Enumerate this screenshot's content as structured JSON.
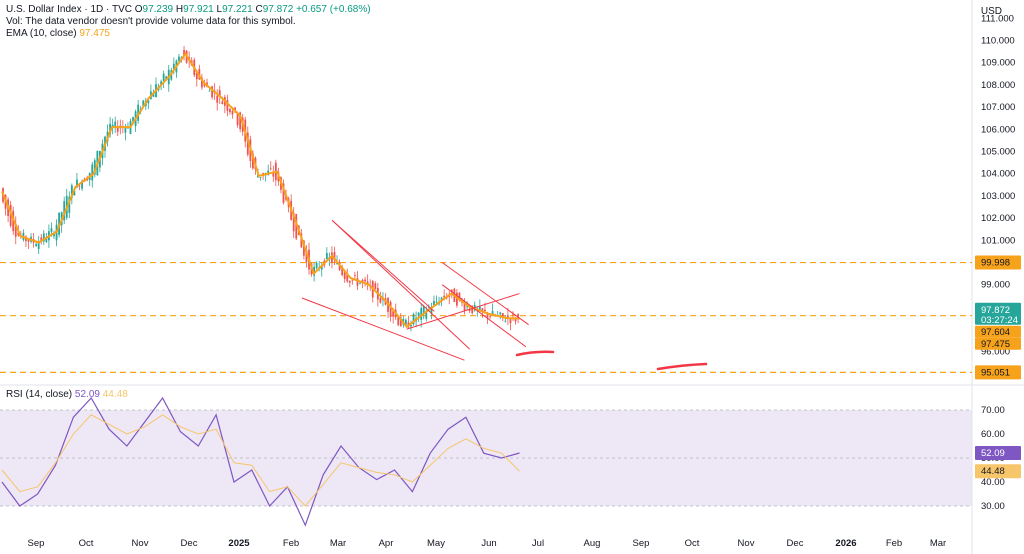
{
  "header": {
    "symbol_line": "U.S. Dollar Index · 1D · TVC",
    "o_label": "O",
    "o_value": "97.239",
    "h_label": "H",
    "h_value": "97.921",
    "l_label": "L",
    "l_value": "97.221",
    "c_label": "C",
    "c_value": "97.872",
    "change": "+0.657 (+0.68%)",
    "vol_note": "Vol: The data vendor doesn't provide volume data for this symbol.",
    "ema_label": "EMA (10, close)",
    "ema_value": "97.475",
    "currency": "USD"
  },
  "rsi_header": {
    "label": "RSI (14, close)",
    "value": "52.09",
    "ma_value": "44.48"
  },
  "colors": {
    "up": "#26a69a",
    "down": "#ef5350",
    "ema": "#f7a21b",
    "rsi": "#7e57c2",
    "rsi_ma": "#f7c66b",
    "rsi_band": "#ede7f6",
    "trendline": "#f23645",
    "dashed": "#f7a21b"
  },
  "chart_data": [
    {
      "type": "line",
      "title": "U.S. Dollar Index · 1D · TVC",
      "x_tick_labels": [
        "Sep",
        "Oct",
        "Nov",
        "Dec",
        "2025",
        "Feb",
        "Mar",
        "Apr",
        "May",
        "Jun",
        "Jul",
        "Aug",
        "Sep",
        "Oct",
        "Nov",
        "Dec",
        "2026",
        "Feb",
        "Mar"
      ],
      "y_tick_labels": [
        "111.000",
        "110.000",
        "109.000",
        "108.000",
        "107.000",
        "106.000",
        "105.000",
        "104.000",
        "103.000",
        "102.000",
        "101.000",
        "99.000",
        "96.000"
      ],
      "ylim": [
        95,
        111
      ],
      "series": [
        {
          "name": "EMA (10, close)",
          "dates": [
            "2024-08-26",
            "2024-09-09",
            "2024-09-23",
            "2024-10-07",
            "2024-10-21",
            "2024-11-04",
            "2024-11-18",
            "2024-12-02",
            "2024-12-16",
            "2025-01-01",
            "2025-01-13",
            "2025-01-27",
            "2025-02-10",
            "2025-02-24",
            "2025-03-10",
            "2025-03-24",
            "2025-04-07",
            "2025-04-21",
            "2025-05-05",
            "2025-05-19",
            "2025-06-02",
            "2025-06-16",
            "2025-07-01",
            "2025-07-14",
            "2025-07-28",
            "2025-08-04",
            "2025-08-18",
            "2025-09-01",
            "2025-09-15",
            "2025-09-25"
          ],
          "values": [
            103.2,
            101.2,
            100.9,
            101.4,
            103.4,
            104.0,
            106.1,
            106.1,
            107.4,
            108.4,
            109.4,
            108.1,
            107.4,
            106.6,
            103.9,
            104.1,
            101.9,
            99.5,
            100.3,
            99.3,
            99.0,
            98.2,
            97.1,
            97.7,
            98.3,
            98.6,
            98.0,
            97.7,
            97.5,
            97.475
          ]
        }
      ],
      "price_labels": [
        "99.998",
        "97.872",
        "03:27:24",
        "97.604",
        "97.475",
        "95.051"
      ],
      "horizontal_levels": [
        99.998,
        97.604,
        95.051
      ],
      "grid": false,
      "legend": "top-left"
    },
    {
      "type": "line",
      "title": "RSI (14, close)",
      "y_tick_labels": [
        "70.00",
        "60.00",
        "50.00",
        "40.00",
        "30.00"
      ],
      "ylim": [
        20,
        75
      ],
      "band": [
        30,
        70
      ],
      "series": [
        {
          "name": "RSI (14, close)",
          "values": [
            40,
            30,
            35,
            47,
            67,
            75,
            62,
            55,
            65,
            75,
            61,
            55,
            68,
            40,
            45,
            30,
            38,
            22,
            43,
            55,
            46,
            41,
            45,
            36,
            52,
            62,
            67,
            52,
            50,
            52.09
          ]
        },
        {
          "name": "MA",
          "values": [
            45,
            36,
            38,
            48,
            60,
            68,
            64,
            60,
            63,
            68,
            63,
            60,
            62,
            48,
            47,
            36,
            38,
            30,
            39,
            48,
            46,
            44,
            43,
            40,
            47,
            54,
            58,
            54,
            52,
            44.48
          ]
        }
      ],
      "price_labels": [
        "52.09",
        "44.48"
      ],
      "grid": false
    }
  ]
}
